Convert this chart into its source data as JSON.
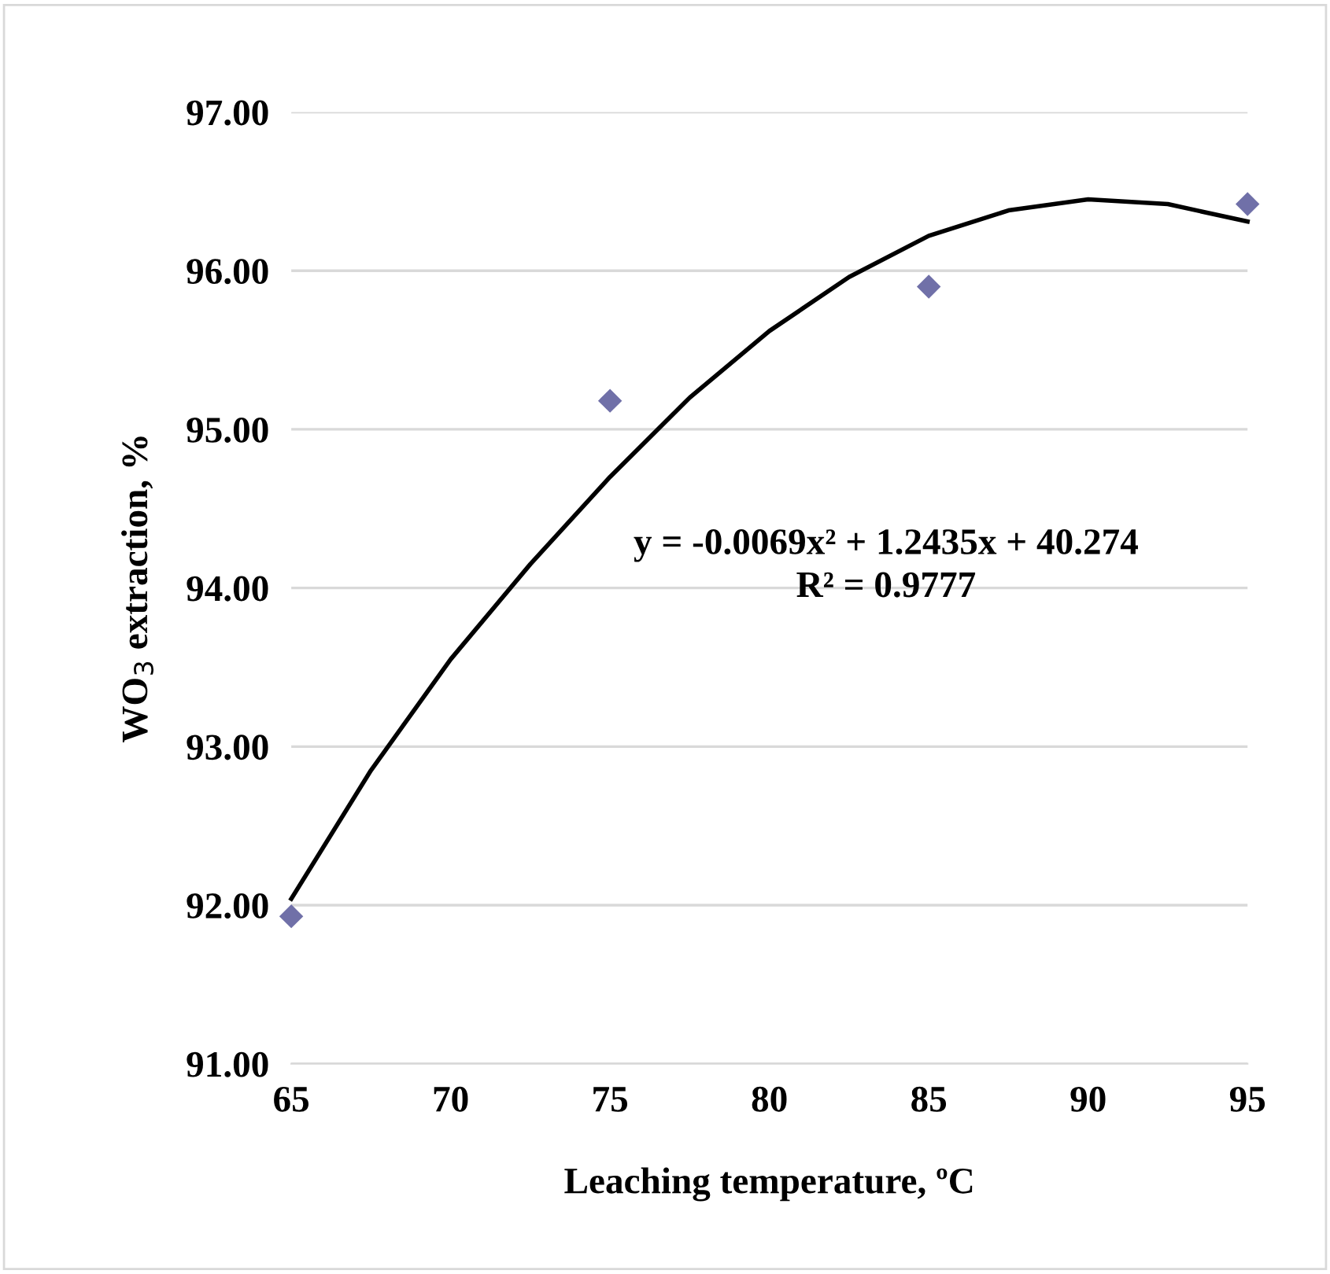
{
  "chart_data": {
    "type": "scatter",
    "xlabel": "Leaching temperature, ºC",
    "ylabel": "WO$_{3}$ extraction, %",
    "xlim": [
      65,
      95
    ],
    "xticks": [
      65,
      70,
      75,
      80,
      85,
      90,
      95
    ],
    "ylim": [
      91,
      97
    ],
    "yticks": [
      {
        "value": 91,
        "label": "91.00"
      },
      {
        "value": 92,
        "label": "92.00"
      },
      {
        "value": 93,
        "label": "93.00"
      },
      {
        "value": 94,
        "label": "94.00"
      },
      {
        "value": 95,
        "label": "95.00"
      },
      {
        "value": 96,
        "label": "96.00"
      },
      {
        "value": 97,
        "label": "97.00"
      }
    ],
    "grid": "y",
    "legend": false,
    "series": [
      {
        "type": "line",
        "color": "#000000",
        "marker": "none",
        "line_style": "solid",
        "x": [
          65,
          67.5,
          70,
          72.5,
          75,
          77.5,
          80,
          82.5,
          85,
          87.5,
          90,
          92.5,
          95
        ],
        "values": [
          92.04,
          92.85,
          93.55,
          94.15,
          94.7,
          95.2,
          95.62,
          95.96,
          96.22,
          96.38,
          96.45,
          96.42,
          96.31
        ]
      },
      {
        "color": "#7070a8",
        "marker": "diamond",
        "x": [
          65,
          75,
          85,
          95
        ],
        "values": [
          91.93,
          95.18,
          95.9,
          96.42
        ]
      }
    ],
    "annotations": [
      "y = -0.0069x² + 1.2435x + 40.274",
      "R² = 0.9777"
    ]
  }
}
